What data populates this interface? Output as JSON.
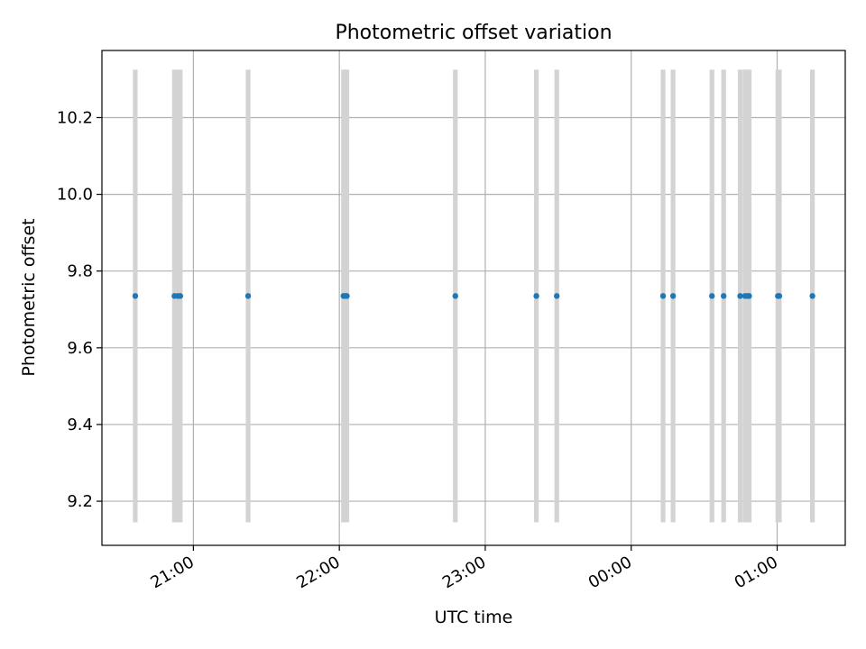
{
  "chart_data": {
    "type": "scatter",
    "title": "Photometric offset variation",
    "xlabel": "UTC time",
    "ylabel": "Photometric offset",
    "x_ticks": [
      "21:00",
      "22:00",
      "23:00",
      "00:00",
      "01:00"
    ],
    "x_tick_values": [
      1260,
      1320,
      1380,
      1440,
      1500
    ],
    "y_ticks": [
      "9.2",
      "9.4",
      "9.6",
      "9.8",
      "10.0",
      "10.2"
    ],
    "y_tick_values": [
      9.2,
      9.4,
      9.6,
      9.8,
      10.0,
      10.2
    ],
    "xlim": [
      1222.4,
      1528.0
    ],
    "ylim": [
      9.085,
      10.375
    ],
    "grid": true,
    "series_color": "#1f77b4",
    "band_color": "#d3d3d3",
    "band_ylim": [
      9.145,
      10.325
    ],
    "points": [
      {
        "x": 1236.1,
        "y": 9.735
      },
      {
        "x": 1252.2,
        "y": 9.735
      },
      {
        "x": 1253.6,
        "y": 9.735
      },
      {
        "x": 1254.6,
        "y": 9.735
      },
      {
        "x": 1282.5,
        "y": 9.735
      },
      {
        "x": 1321.7,
        "y": 9.735
      },
      {
        "x": 1322.4,
        "y": 9.735
      },
      {
        "x": 1323.1,
        "y": 9.735
      },
      {
        "x": 1367.7,
        "y": 9.735
      },
      {
        "x": 1401.0,
        "y": 9.735
      },
      {
        "x": 1409.4,
        "y": 9.735
      },
      {
        "x": 1453.1,
        "y": 9.735
      },
      {
        "x": 1457.2,
        "y": 9.735
      },
      {
        "x": 1473.2,
        "y": 9.735
      },
      {
        "x": 1478.0,
        "y": 9.735
      },
      {
        "x": 1484.8,
        "y": 9.735
      },
      {
        "x": 1486.8,
        "y": 9.735
      },
      {
        "x": 1487.7,
        "y": 9.735
      },
      {
        "x": 1488.5,
        "y": 9.735
      },
      {
        "x": 1500.3,
        "y": 9.735
      },
      {
        "x": 1500.9,
        "y": 9.735
      },
      {
        "x": 1514.5,
        "y": 9.735
      }
    ],
    "bands": [
      1236.1,
      1252.2,
      1253.6,
      1254.6,
      1282.5,
      1321.7,
      1322.4,
      1323.1,
      1367.7,
      1401.0,
      1409.4,
      1453.1,
      1457.2,
      1473.2,
      1478.0,
      1484.8,
      1486.8,
      1487.7,
      1488.5,
      1500.3,
      1500.9,
      1514.5
    ]
  }
}
